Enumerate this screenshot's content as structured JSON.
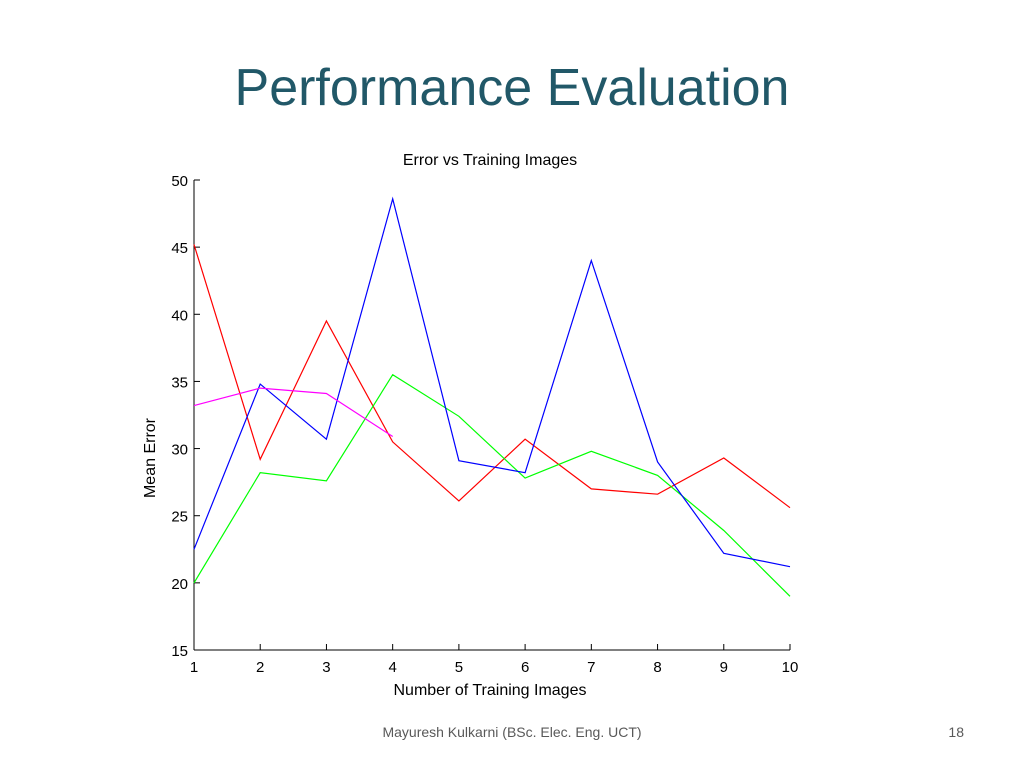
{
  "slide": {
    "title": "Performance Evaluation",
    "footer": "Mayuresh Kulkarni (BSc. Elec. Eng. UCT)",
    "page_number": "18"
  },
  "chart_data": {
    "type": "line",
    "title": "Error vs Training Images",
    "xlabel": "Number of Training Images",
    "ylabel": "Mean Error",
    "xlim": [
      1,
      10
    ],
    "ylim": [
      15,
      50
    ],
    "x_ticks": [
      1,
      2,
      3,
      4,
      5,
      6,
      7,
      8,
      9,
      10
    ],
    "y_ticks": [
      15,
      20,
      25,
      30,
      35,
      40,
      45,
      50
    ],
    "grid": false,
    "series": [
      {
        "color": "#ff0000",
        "x": [
          1,
          2,
          3,
          4,
          5,
          6,
          7,
          8,
          9,
          10
        ],
        "y": [
          45.2,
          29.2,
          39.5,
          30.5,
          26.1,
          30.7,
          27.0,
          26.6,
          29.3,
          25.6
        ]
      },
      {
        "color": "#00ff00",
        "x": [
          1,
          2,
          3,
          4,
          5,
          6,
          7,
          8,
          9,
          10
        ],
        "y": [
          20.0,
          28.2,
          27.6,
          35.5,
          32.4,
          27.8,
          29.8,
          28.0,
          23.9,
          19.0
        ]
      },
      {
        "color": "#0000ff",
        "x": [
          1,
          2,
          3,
          4,
          5,
          6,
          7,
          8,
          9,
          10
        ],
        "y": [
          22.5,
          34.8,
          30.7,
          48.6,
          29.1,
          28.2,
          44.0,
          29.0,
          22.2,
          21.2
        ]
      },
      {
        "color": "#ff00ff",
        "x": [
          1,
          2,
          3,
          4
        ],
        "y": [
          33.2,
          34.5,
          34.1,
          30.9
        ]
      }
    ]
  }
}
